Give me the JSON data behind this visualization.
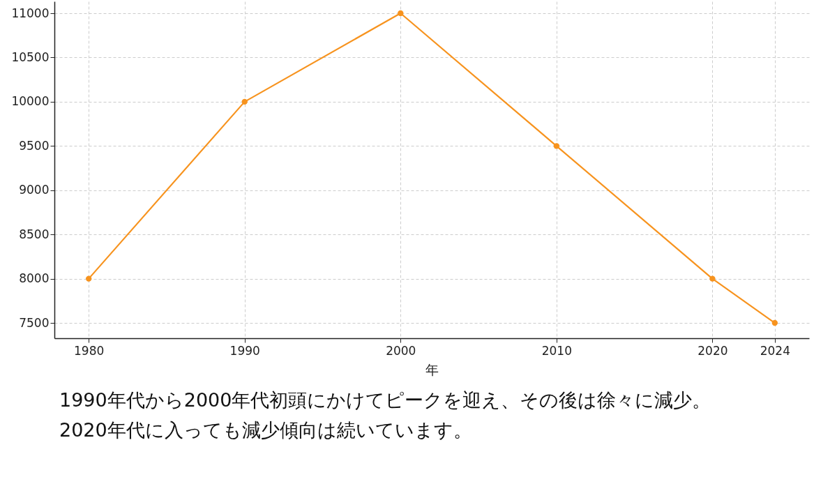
{
  "chart_data": {
    "type": "line",
    "xlabel": "年",
    "x": [
      1980,
      1990,
      2000,
      2010,
      2020,
      2024
    ],
    "series": [
      {
        "color": "#f7931e",
        "values": [
          8000,
          10000,
          11000,
          9500,
          8000,
          7500
        ]
      }
    ],
    "xlim": [
      1977.8,
      2026.2
    ],
    "xticks": [
      1980,
      1990,
      2000,
      2010,
      2020,
      2024
    ],
    "ylim": [
      7327,
      11134
    ],
    "yticks": [
      7500,
      8000,
      8500,
      9000,
      9500,
      10000,
      10500,
      11000
    ],
    "grid": true,
    "marker": "circle",
    "line_style": "solid",
    "annotations": [
      "1990年代から2000年代初頭にかけてピークを迎え、その後は徐々に減少。",
      "2020年代に入っても減少傾向は続いています。"
    ]
  }
}
